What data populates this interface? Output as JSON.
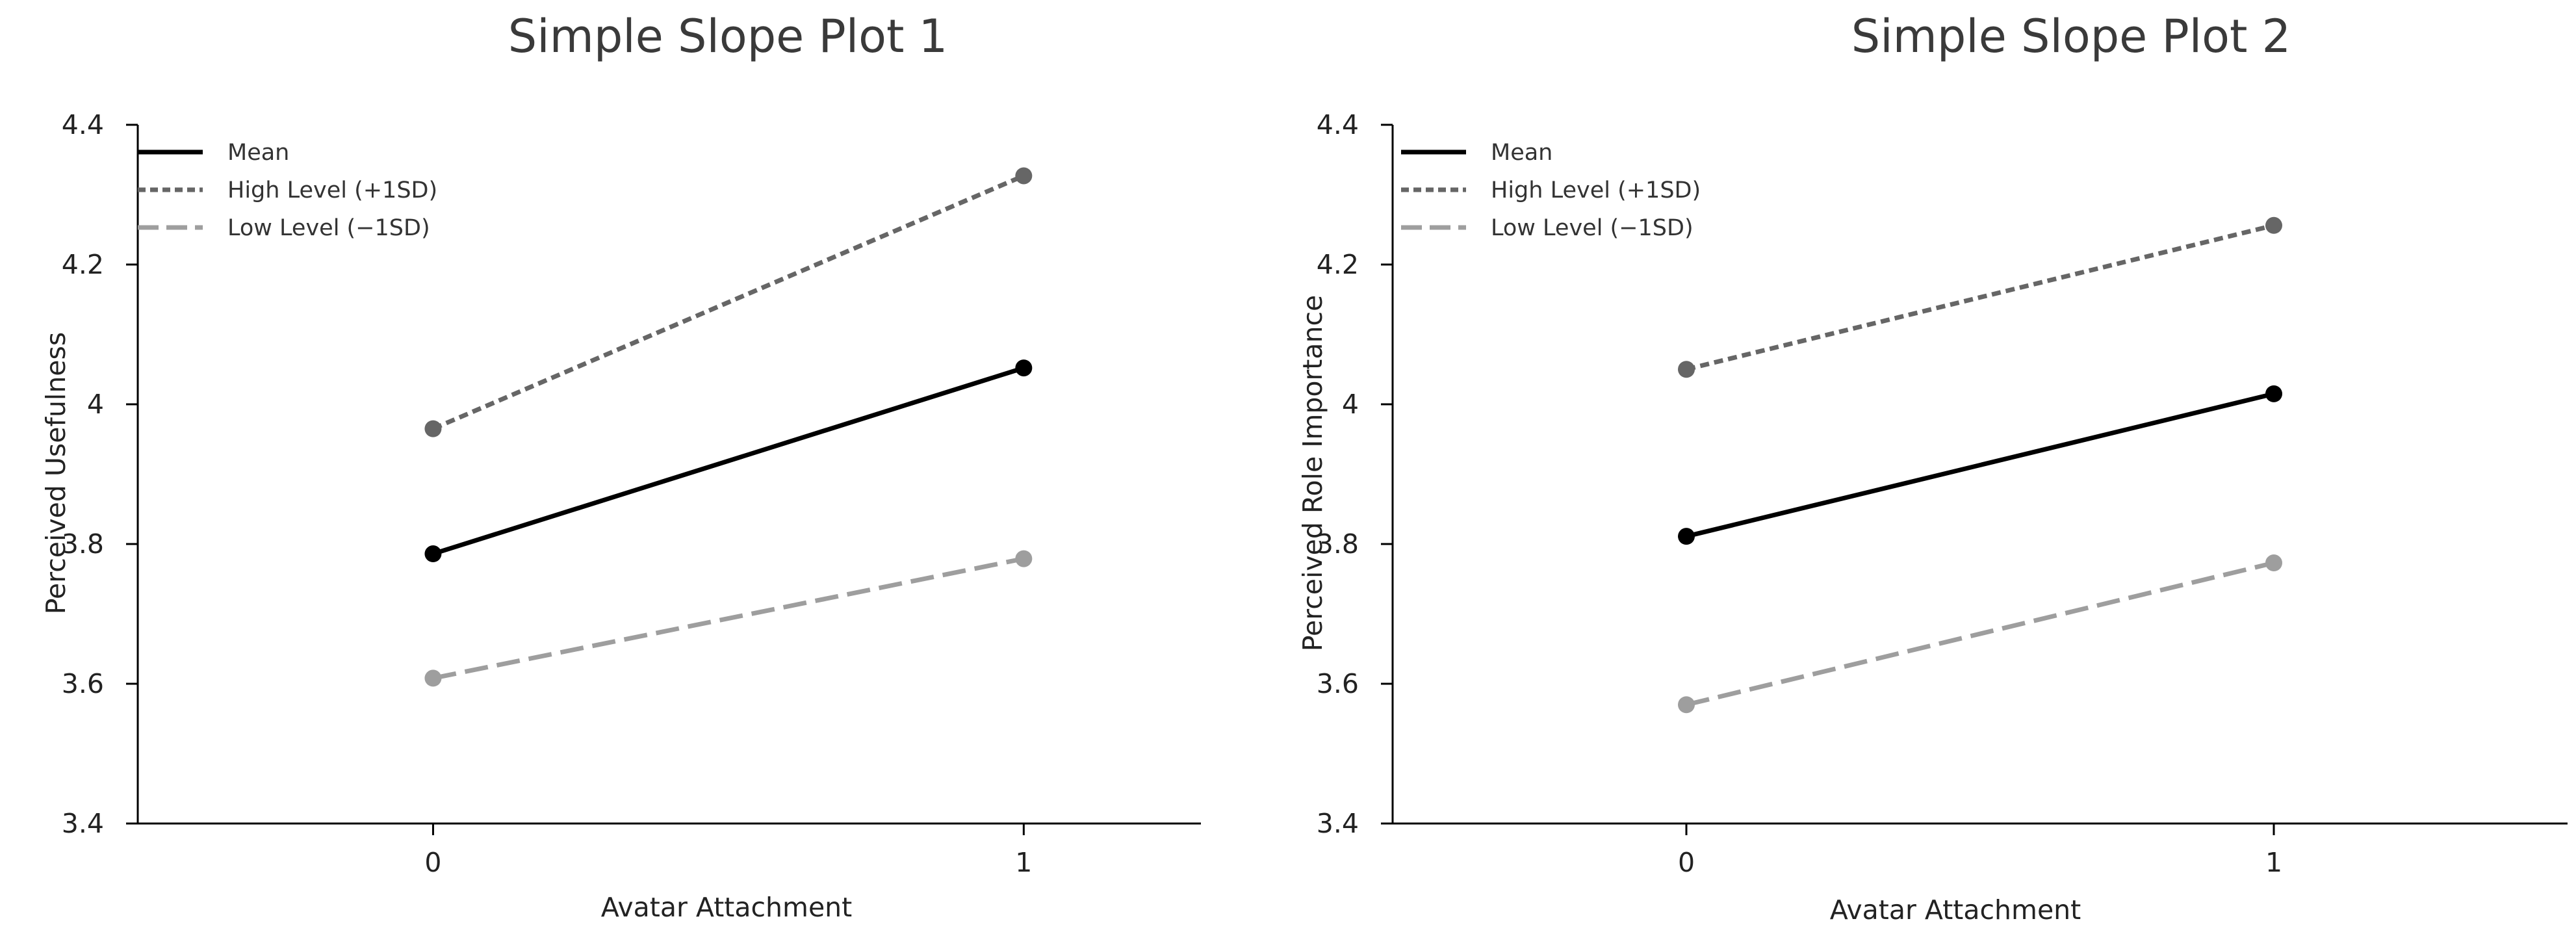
{
  "chart_data": [
    {
      "type": "line",
      "title": "Simple Slope Plot 1",
      "xlabel": "Avatar Attachment",
      "ylabel": "Perceived Usefulness",
      "x": [
        0,
        1
      ],
      "xlim": [
        -0.5,
        1.3
      ],
      "ylim": [
        3.4,
        4.4
      ],
      "xticks": [
        0,
        1
      ],
      "xtick_labels": [
        "0",
        "1"
      ],
      "yticks": [
        3.4,
        3.6,
        3.8,
        4.0,
        4.2,
        4.4
      ],
      "ytick_labels": [
        "3.4",
        "3.6",
        "3.8",
        "4",
        "4.2",
        "4.4"
      ],
      "grid": false,
      "legend_position": "top-left",
      "series": [
        {
          "name": "Mean",
          "values": [
            3.786,
            4.052
          ],
          "color": "#000000",
          "dash": "solid"
        },
        {
          "name": "High Level (+1SD)",
          "values": [
            3.965,
            4.327
          ],
          "color": "#666666",
          "dash": "dotted"
        },
        {
          "name": "Low Level (−1SD)",
          "values": [
            3.608,
            3.779
          ],
          "color": "#9e9e9e",
          "dash": "dashed"
        }
      ]
    },
    {
      "type": "line",
      "title": "Simple Slope Plot 2",
      "xlabel": "Avatar Attachment",
      "ylabel": "Perceived Role Importance",
      "x": [
        0,
        1
      ],
      "xlim": [
        -0.5,
        1.5
      ],
      "ylim": [
        3.4,
        4.4
      ],
      "xticks": [
        0,
        1
      ],
      "xtick_labels": [
        "0",
        "1"
      ],
      "yticks": [
        3.4,
        3.6,
        3.8,
        4.0,
        4.2,
        4.4
      ],
      "ytick_labels": [
        "3.4",
        "3.6",
        "3.8",
        "4",
        "4.2",
        "4.4"
      ],
      "grid": false,
      "legend_position": "top-left",
      "series": [
        {
          "name": "Mean",
          "values": [
            3.811,
            4.015
          ],
          "color": "#000000",
          "dash": "solid"
        },
        {
          "name": "High Level (+1SD)",
          "values": [
            4.05,
            4.256
          ],
          "color": "#666666",
          "dash": "dotted"
        },
        {
          "name": "Low Level (−1SD)",
          "values": [
            3.57,
            3.773
          ],
          "color": "#9e9e9e",
          "dash": "dashed"
        }
      ]
    }
  ]
}
